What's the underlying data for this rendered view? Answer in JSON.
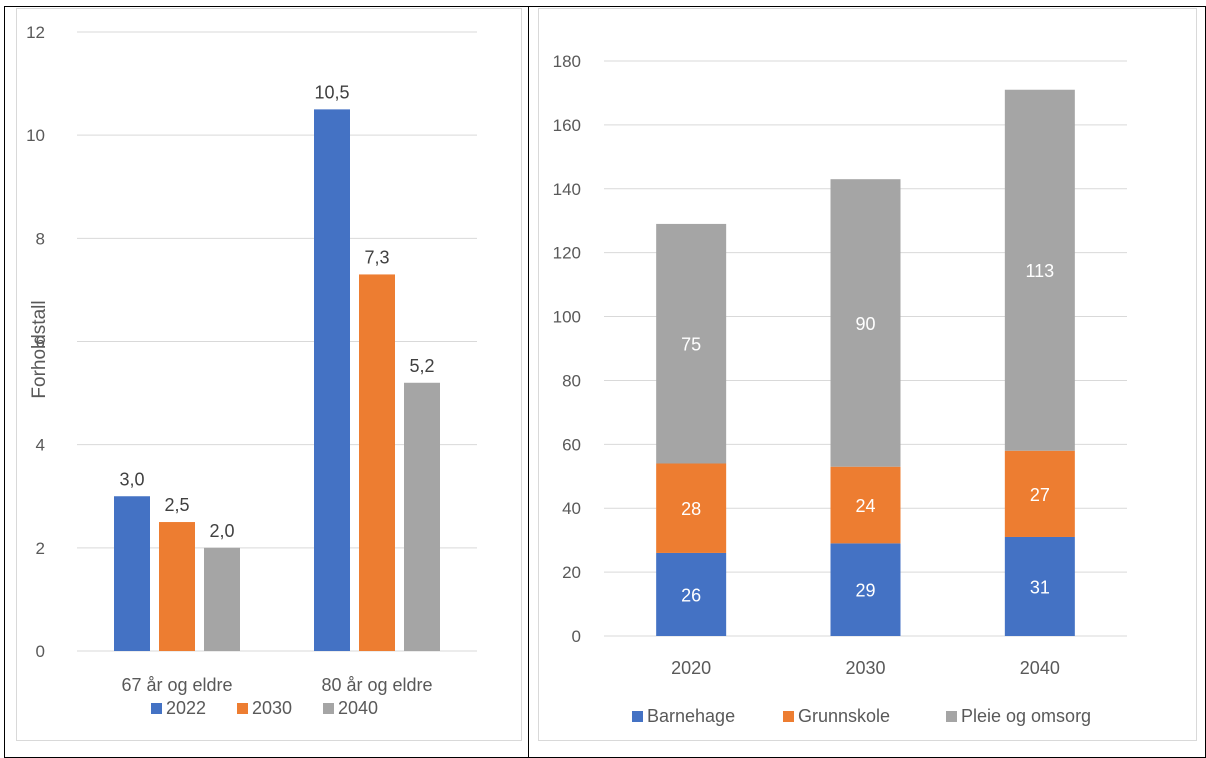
{
  "chart_data": [
    {
      "type": "bar",
      "ylabel": "Forholdstall",
      "ylim": [
        0,
        12
      ],
      "yticks": [
        0,
        2,
        4,
        6,
        8,
        10,
        12
      ],
      "categories": [
        "67 år og eldre",
        "80 år og eldre"
      ],
      "series": [
        {
          "name": "2022",
          "color": "#4472c4",
          "values": [
            3.0,
            10.5
          ],
          "labels": [
            "3,0",
            "10,5"
          ]
        },
        {
          "name": "2030",
          "color": "#ed7d31",
          "values": [
            2.5,
            7.3
          ],
          "labels": [
            "2,5",
            "7,3"
          ]
        },
        {
          "name": "2040",
          "color": "#a5a5a5",
          "values": [
            2.0,
            5.2
          ],
          "labels": [
            "2,0",
            "5,2"
          ]
        }
      ],
      "grid": true,
      "legend": "bottom"
    },
    {
      "type": "bar",
      "stacked": true,
      "ylim": [
        0,
        180
      ],
      "yticks": [
        0,
        20,
        40,
        60,
        80,
        100,
        120,
        140,
        160,
        180
      ],
      "categories": [
        "2020",
        "2030",
        "2040"
      ],
      "series": [
        {
          "name": "Barnehage",
          "color": "#4472c4",
          "values": [
            26,
            29,
            31
          ]
        },
        {
          "name": "Grunnskole",
          "color": "#ed7d31",
          "values": [
            28,
            24,
            27
          ]
        },
        {
          "name": "Pleie og omsorg",
          "color": "#a5a5a5",
          "values": [
            75,
            90,
            113
          ]
        }
      ],
      "grid": true,
      "legend": "bottom"
    }
  ]
}
